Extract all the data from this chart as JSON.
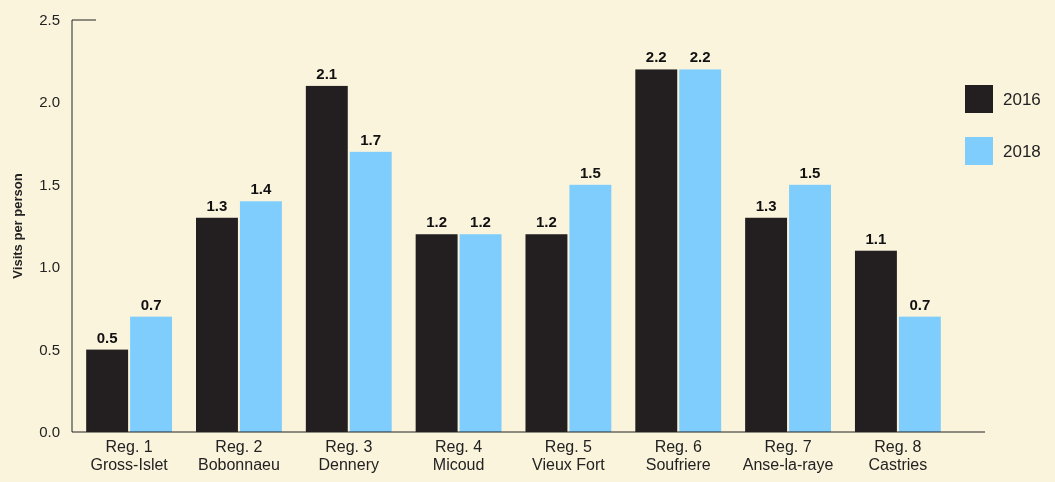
{
  "chart_data": {
    "type": "bar",
    "ylabel": "Visits per person",
    "categories": [
      "Reg. 1\nGross-Islet",
      "Reg. 2\nBobonnaeu",
      "Reg. 3\nDennery",
      "Reg. 4\nMicoud",
      "Reg. 5\nVieux Fort",
      "Reg. 6\nSoufriere",
      "Reg. 7\nAnse-la-raye",
      "Reg. 8\nCastries"
    ],
    "series": [
      {
        "name": "2016",
        "color": "#231f20",
        "values": [
          0.5,
          1.3,
          2.1,
          1.2,
          1.2,
          2.2,
          1.3,
          1.1
        ]
      },
      {
        "name": "2018",
        "color": "#7fcdfd",
        "values": [
          0.7,
          1.4,
          1.7,
          1.2,
          1.5,
          2.2,
          1.5,
          0.7
        ]
      }
    ],
    "ylim": [
      0,
      2.5
    ],
    "yticks": [
      {
        "value": 0,
        "label": "0.0"
      },
      {
        "value": 0.5,
        "label": "0.5"
      },
      {
        "value": 1,
        "label": "1.0"
      },
      {
        "value": 1.5,
        "label": "1.5"
      },
      {
        "value": 2,
        "label": "2.0"
      },
      {
        "value": 2.5,
        "label": "2.5"
      }
    ],
    "data_labels": true,
    "legend": "right",
    "grid": false
  }
}
